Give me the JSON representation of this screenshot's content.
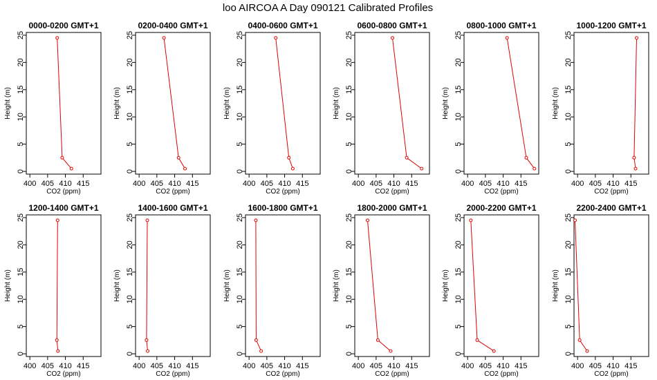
{
  "page": {
    "title": "loo AIRCOA A  Day 090121  Calibrated Profiles"
  },
  "chart_data": {
    "type": "line",
    "title": "loo AIRCOA A  Day 090121  Calibrated Profiles",
    "xlabel": "CO2 (ppm)",
    "ylabel": "Height (m)",
    "xlim": [
      399,
      420
    ],
    "ylim": [
      -0.5,
      25.5
    ],
    "xticks": [
      400,
      405,
      410,
      415
    ],
    "yticks": [
      0,
      5,
      10,
      15,
      20,
      25
    ],
    "heights": [
      0.5,
      2.5,
      24.5
    ],
    "grid": false,
    "line_color": "#e00000",
    "panels": [
      {
        "title": "0000-0200 GMT+1",
        "co2": [
          411.7,
          409.1,
          407.7
        ]
      },
      {
        "title": "0200-0400 GMT+1",
        "co2": [
          412.9,
          411.1,
          407.0
        ]
      },
      {
        "title": "0400-0600 GMT+1",
        "co2": [
          412.3,
          411.2,
          407.5
        ]
      },
      {
        "title": "0600-0800 GMT+1",
        "co2": [
          417.8,
          413.6,
          409.6
        ]
      },
      {
        "title": "0800-1000 GMT+1",
        "co2": [
          418.8,
          416.5,
          411.1
        ]
      },
      {
        "title": "1000-1200 GMT+1",
        "co2": [
          416.3,
          415.9,
          416.6
        ]
      },
      {
        "title": "1200-1400 GMT+1",
        "co2": [
          407.9,
          407.6,
          407.8
        ]
      },
      {
        "title": "1400-1600 GMT+1",
        "co2": [
          402.4,
          402.1,
          402.3
        ]
      },
      {
        "title": "1600-1800 GMT+1",
        "co2": [
          403.4,
          402.0,
          401.9
        ]
      },
      {
        "title": "1800-2000 GMT+1",
        "co2": [
          409.1,
          405.5,
          402.6
        ]
      },
      {
        "title": "2000-2200 GMT+1",
        "co2": [
          407.4,
          402.7,
          400.9
        ]
      },
      {
        "title": "2200-2400 GMT+1",
        "co2": [
          402.7,
          400.6,
          399.3
        ]
      }
    ]
  }
}
